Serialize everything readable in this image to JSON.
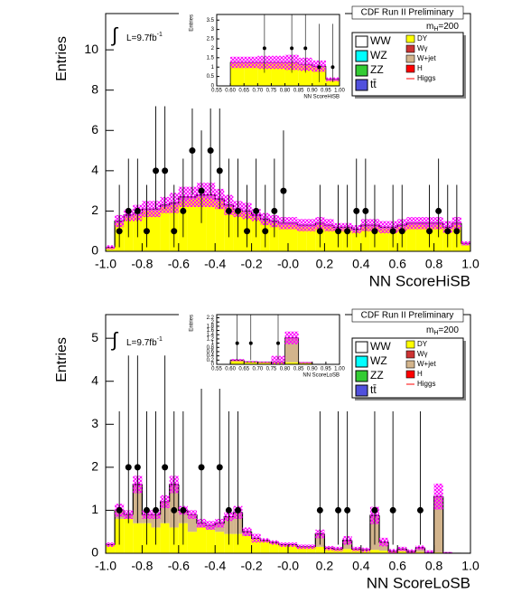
{
  "chart_data": [
    {
      "type": "histogram",
      "title": "CDF Run II Preliminary",
      "x_label": "NN ScoreHiSB",
      "y_label": "Entries",
      "lumi": {
        "integral": "∫",
        "text": "L=9.7fb",
        "sup": "-1"
      },
      "mass": {
        "text": "m",
        "sub": "H",
        "rest": "=200"
      },
      "xlim": [
        -1,
        1
      ],
      "ylim": [
        0,
        11.8
      ],
      "xticks": [
        {
          "value": -1,
          "label": "-1.0"
        },
        {
          "value": -0.8,
          "label": "-0.8"
        },
        {
          "value": -0.6,
          "label": "-0.6"
        },
        {
          "value": -0.4,
          "label": "-0.4"
        },
        {
          "value": -0.2,
          "label": "-0.2"
        },
        {
          "value": 0,
          "label": "-0.0"
        },
        {
          "value": 0.2,
          "label": "0.2"
        },
        {
          "value": 0.4,
          "label": "0.4"
        },
        {
          "value": 0.6,
          "label": "0.6"
        },
        {
          "value": 0.8,
          "label": "0.8"
        },
        {
          "value": 1,
          "label": "1.0"
        }
      ],
      "yticks": [
        0,
        2,
        4,
        6,
        8,
        10
      ],
      "bins": [
        -1,
        -0.95,
        -0.9,
        -0.85,
        -0.8,
        -0.75,
        -0.7,
        -0.65,
        -0.6,
        -0.55,
        -0.5,
        -0.45,
        -0.4,
        -0.35,
        -0.3,
        -0.25,
        -0.2,
        -0.15,
        -0.1,
        -0.05,
        0,
        0.05,
        0.1,
        0.15,
        0.2,
        0.25,
        0.3,
        0.35,
        0.4,
        0.45,
        0.5,
        0.55,
        0.6,
        0.65,
        0.7,
        0.75,
        0.8,
        0.85,
        0.9,
        0.95,
        1
      ],
      "series": [
        {
          "name": "WW",
          "color": "#ffffff"
        },
        {
          "name": "WZ",
          "color": "#00ffff"
        },
        {
          "name": "ZZ",
          "color": "#33cc33"
        },
        {
          "name": "tt̄",
          "color": "#5050dd"
        },
        {
          "name": "DY",
          "color": "#ffff00",
          "values": [
            0.2,
            1.4,
            1.7,
            1.8,
            2.0,
            2.0,
            2.2,
            2.3,
            2.5,
            2.6,
            2.7,
            2.6,
            2.5,
            2.2,
            2.0,
            1.9,
            1.7,
            1.5,
            1.4,
            1.3,
            1.3,
            1.2,
            1.2,
            1.3,
            1.2,
            1.1,
            1.1,
            1.0,
            1.2,
            1.2,
            1.1,
            1.1,
            1.2,
            1.3,
            1.3,
            1.2,
            1.3,
            1.1,
            1.3,
            0.3
          ]
        },
        {
          "name": "Wγ",
          "color": "#cc3333"
        },
        {
          "name": "W+jet",
          "color": "#d2b48c",
          "values": [
            0,
            0.1,
            0.1,
            0.1,
            0.1,
            0.1,
            0.1,
            0.1,
            0.2,
            0.1,
            0.1,
            0.2,
            0.1,
            0.1,
            0.1,
            0.1,
            0.1,
            0.1,
            0.1,
            0.1,
            0.1,
            0.1,
            0.1,
            0.1,
            0.1,
            0.1,
            0.1,
            0.1,
            0.1,
            0.1,
            0.1,
            0.1,
            0.1,
            0.1,
            0.1,
            0.2,
            0.1,
            0.1,
            0.1,
            0.1
          ]
        },
        {
          "name": "H",
          "color": "#ff0000"
        },
        {
          "name": "Higgs",
          "color": "#ff0000",
          "style": "line"
        }
      ],
      "band": {
        "color": "#ff00ff",
        "values": [
          0.1,
          0.3,
          0.3,
          0.4,
          0.4,
          0.4,
          0.4,
          0.5,
          0.5,
          0.5,
          0.6,
          0.6,
          0.5,
          0.5,
          0.4,
          0.4,
          0.3,
          0.3,
          0.3,
          0.3,
          0.3,
          0.3,
          0.3,
          0.3,
          0.3,
          0.2,
          0.2,
          0.2,
          0.3,
          0.3,
          0.3,
          0.3,
          0.3,
          0.3,
          0.3,
          0.3,
          0.3,
          0.3,
          0.3,
          0.1
        ]
      },
      "data_points": {
        "color": "#000000",
        "x": [
          -0.925,
          -0.875,
          -0.825,
          -0.775,
          -0.725,
          -0.675,
          -0.625,
          -0.575,
          -0.525,
          -0.475,
          -0.425,
          -0.375,
          -0.325,
          -0.275,
          -0.225,
          -0.175,
          -0.125,
          -0.075,
          -0.025,
          0.175,
          0.275,
          0.325,
          0.375,
          0.425,
          0.475,
          0.575,
          0.625,
          0.775,
          0.825,
          0.875,
          0.925
        ],
        "values": [
          1,
          2,
          2,
          1,
          4,
          4,
          1,
          2,
          5,
          3,
          5,
          4,
          2,
          2,
          1,
          2,
          1,
          2,
          3,
          1,
          1,
          1,
          2,
          2,
          1,
          1,
          1,
          1,
          2,
          1,
          1
        ],
        "error_low": [
          0.8,
          1.3,
          1.3,
          0.8,
          1.9,
          1.9,
          0.8,
          1.3,
          2.2,
          1.6,
          2.2,
          1.9,
          1.3,
          1.3,
          0.8,
          1.3,
          0.8,
          1.3,
          1.6,
          0.8,
          0.8,
          0.8,
          1.3,
          1.3,
          0.8,
          0.8,
          0.8,
          0.8,
          1.3,
          0.8,
          0.8
        ],
        "error_high": [
          2.3,
          2.6,
          2.6,
          2.3,
          3.2,
          3.2,
          2.3,
          2.6,
          3.4,
          3.0,
          3.4,
          3.2,
          2.6,
          2.6,
          2.3,
          2.6,
          2.3,
          2.6,
          3.0,
          2.3,
          2.3,
          2.3,
          2.6,
          2.6,
          2.3,
          2.3,
          2.3,
          2.3,
          2.6,
          2.3,
          2.3
        ]
      },
      "inset": {
        "type": "histogram",
        "x_label": "NN ScoreHiSB",
        "y_label": "Entries",
        "xlim": [
          0.55,
          1
        ],
        "ylim": [
          0,
          3.8
        ],
        "xticks": [
          0.55,
          {
            "value": 0.6,
            "label": "0.60"
          },
          0.65,
          {
            "value": 0.7,
            "label": "0.70"
          },
          0.75,
          {
            "value": 0.8,
            "label": "0.80"
          },
          0.85,
          {
            "value": 0.9,
            "label": "0.90"
          },
          0.95,
          {
            "value": 1,
            "label": "1.00"
          }
        ],
        "yticks": [
          0,
          0.5,
          1,
          1.5,
          2,
          2.5,
          3,
          3.5
        ],
        "bins": [
          0.55,
          0.6,
          0.65,
          0.7,
          0.75,
          0.8,
          0.85,
          0.9,
          0.95,
          1
        ],
        "series": [
          {
            "color": "#ffff00",
            "values": [
              0,
              1.2,
              1.2,
              1.2,
              1.2,
              1.2,
              1.1,
              1.0,
              0.3
            ]
          },
          {
            "color": "#d2b48c",
            "values": [
              0,
              0.05,
              0.05,
              0.05,
              0.05,
              0.05,
              0.05,
              0.05,
              0.05
            ]
          }
        ],
        "band": {
          "color": "#ff00ff",
          "values": [
            0,
            0.3,
            0.3,
            0.35,
            0.35,
            0.4,
            0.35,
            0.3,
            0.1
          ]
        },
        "data_points": {
          "color": "#000000",
          "x": [
            0.725,
            0.825,
            0.875,
            0.925,
            0.975
          ],
          "values": [
            2,
            2,
            2,
            1,
            1
          ],
          "error_low": [
            1.3,
            1.3,
            1.3,
            0.8,
            0.8
          ],
          "error_high": [
            2.6,
            2.6,
            2.6,
            2.3,
            2.3
          ]
        }
      }
    },
    {
      "type": "histogram",
      "title": "CDF Run II Preliminary",
      "x_label": "NN ScoreLoSB",
      "y_label": "Entries",
      "lumi": {
        "integral": "∫",
        "text": "L=9.7fb",
        "sup": "-1"
      },
      "mass": {
        "text": "m",
        "sub": "H",
        "rest": "=200"
      },
      "xlim": [
        -1,
        1
      ],
      "ylim": [
        0,
        5.55
      ],
      "xticks": [
        {
          "value": -1,
          "label": "-1.0"
        },
        {
          "value": -0.8,
          "label": "-0.8"
        },
        {
          "value": -0.6,
          "label": "-0.6"
        },
        {
          "value": -0.4,
          "label": "-0.4"
        },
        {
          "value": -0.2,
          "label": "-0.2"
        },
        {
          "value": 0,
          "label": "-0.0"
        },
        {
          "value": 0.2,
          "label": "0.2"
        },
        {
          "value": 0.4,
          "label": "0.4"
        },
        {
          "value": 0.6,
          "label": "0.6"
        },
        {
          "value": 0.8,
          "label": "0.8"
        },
        {
          "value": 1,
          "label": "1.0"
        }
      ],
      "yticks": [
        0,
        1,
        2,
        3,
        4,
        5
      ],
      "bins": [
        -1,
        -0.95,
        -0.9,
        -0.85,
        -0.8,
        -0.75,
        -0.7,
        -0.65,
        -0.6,
        -0.55,
        -0.5,
        -0.45,
        -0.4,
        -0.35,
        -0.3,
        -0.25,
        -0.2,
        -0.15,
        -0.1,
        -0.05,
        0,
        0.05,
        0.1,
        0.15,
        0.2,
        0.25,
        0.3,
        0.35,
        0.4,
        0.45,
        0.5,
        0.55,
        0.6,
        0.65,
        0.7,
        0.75,
        0.8,
        0.85,
        0.9,
        0.95,
        1
      ],
      "series": [
        {
          "name": "WW",
          "color": "#ffffff"
        },
        {
          "name": "WZ",
          "color": "#00ffff"
        },
        {
          "name": "ZZ",
          "color": "#33cc33"
        },
        {
          "name": "tt̄",
          "color": "#5050dd"
        },
        {
          "name": "DY",
          "color": "#ffff00",
          "values": [
            0.2,
            0.8,
            0.8,
            0.7,
            0.7,
            0.6,
            0.7,
            0.6,
            0.7,
            0.5,
            0.6,
            0.55,
            0.5,
            0.45,
            0.45,
            0.4,
            0.35,
            0.3,
            0.25,
            0.2,
            0.2,
            0.15,
            0.15,
            0.15,
            0.12,
            0.1,
            0.1,
            0.1,
            0.08,
            0.08,
            0.06,
            0.05,
            0.05,
            0.04,
            0.03,
            0.02,
            0.02,
            0.01,
            0,
            0
          ]
        },
        {
          "name": "Wγ",
          "color": "#cc3333"
        },
        {
          "name": "W+jet",
          "color": "#d2b48c",
          "values": [
            0,
            0.2,
            0.1,
            0.9,
            0.2,
            0.3,
            0.5,
            1.0,
            0.3,
            0.4,
            0.1,
            0.1,
            0.2,
            0.4,
            0.5,
            0.1,
            0,
            0,
            0,
            0,
            0,
            0,
            0,
            0.3,
            0,
            0,
            0.2,
            0,
            0,
            0.8,
            0.2,
            0,
            0.05,
            0,
            0.1,
            0,
            1.3,
            0,
            0,
            0
          ]
        },
        {
          "name": "H",
          "color": "#ff0000"
        },
        {
          "name": "Higgs",
          "color": "#ff0000",
          "style": "line"
        }
      ],
      "band": {
        "color": "#ff00ff",
        "values": [
          0.05,
          0.15,
          0.1,
          0.2,
          0.1,
          0.1,
          0.15,
          0.2,
          0.1,
          0.1,
          0.1,
          0.1,
          0.1,
          0.1,
          0.15,
          0.1,
          0.1,
          0.05,
          0.05,
          0.05,
          0.05,
          0.05,
          0.05,
          0.1,
          0.05,
          0.05,
          0.1,
          0.05,
          0.05,
          0.2,
          0.1,
          0.05,
          0.05,
          0.05,
          0.05,
          0.05,
          0.3,
          0.02,
          0,
          0
        ]
      },
      "data_points": {
        "color": "#000000",
        "x": [
          -0.925,
          -0.875,
          -0.825,
          -0.775,
          -0.725,
          -0.675,
          -0.625,
          -0.575,
          -0.475,
          -0.375,
          -0.325,
          -0.275,
          0.175,
          0.275,
          0.325,
          0.475,
          0.575,
          0.725
        ],
        "values": [
          1,
          2,
          2,
          1,
          1,
          2,
          1,
          1,
          2,
          2,
          1,
          1,
          1,
          1,
          1,
          1,
          1,
          1
        ],
        "error_low": [
          0.8,
          1.3,
          1.3,
          0.8,
          0.8,
          1.3,
          0.8,
          0.8,
          1.3,
          1.3,
          0.8,
          0.8,
          0.8,
          0.8,
          0.8,
          0.8,
          0.8,
          0.8
        ],
        "error_high": [
          2.3,
          2.6,
          2.6,
          2.3,
          2.3,
          2.6,
          2.3,
          2.3,
          2.6,
          2.6,
          2.3,
          2.3,
          2.3,
          2.3,
          2.3,
          2.3,
          2.3,
          2.3
        ]
      },
      "inset": {
        "type": "histogram",
        "x_label": "NN ScoreLoSB",
        "y_label": "Entries",
        "xlim": [
          0.55,
          1
        ],
        "ylim": [
          0,
          2.35
        ],
        "xticks": [
          0.55,
          {
            "value": 0.6,
            "label": "0.60"
          },
          0.65,
          {
            "value": 0.7,
            "label": "0.70"
          },
          0.75,
          {
            "value": 0.8,
            "label": "0.80"
          },
          0.85,
          {
            "value": 0.9,
            "label": "0.90"
          },
          0.95,
          {
            "value": 1,
            "label": "1.00"
          }
        ],
        "yticks": [
          0,
          0.2,
          0.4,
          0.6,
          0.8,
          1,
          1.2,
          1.4,
          1.6,
          1.8,
          2,
          2.2
        ],
        "bins": [
          0.55,
          0.6,
          0.65,
          0.7,
          0.75,
          0.8,
          0.85,
          0.9,
          0.95,
          1
        ],
        "series": [
          {
            "color": "#ffff00",
            "values": [
              0,
              0.15,
              0.12,
              0.1,
              0.1,
              0.1,
              0.08,
              0,
              0
            ]
          },
          {
            "color": "#d2b48c",
            "values": [
              0,
              0.05,
              0,
              0,
              0,
              1.15,
              0,
              0,
              0
            ]
          }
        ],
        "band": {
          "color": "#ff00ff",
          "values": [
            0,
            0.05,
            0.03,
            0.03,
            0.3,
            0.3,
            0.03,
            0,
            0
          ]
        },
        "data_points": {
          "color": "#000000",
          "x": [
            0.625,
            0.675,
            0.775
          ],
          "values": [
            1,
            1,
            1
          ],
          "error_low": [
            0.8,
            0.8,
            0.8
          ],
          "error_high": [
            2.3,
            2.3,
            2.3
          ]
        }
      }
    }
  ]
}
